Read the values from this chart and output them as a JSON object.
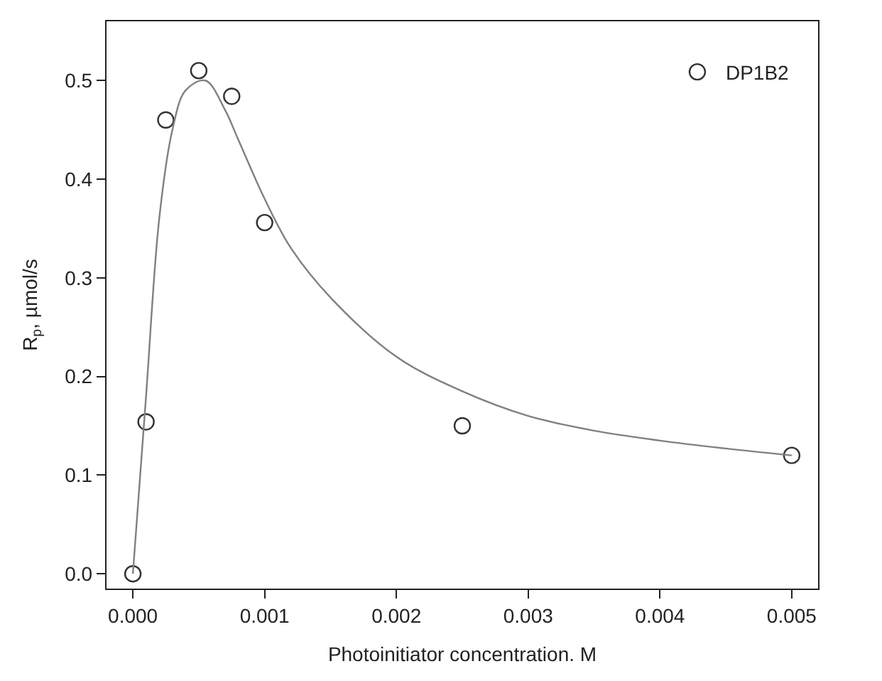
{
  "chart_data": {
    "type": "scatter",
    "xlabel": "Photoinitiator concentration. M",
    "ylabel": "R$_{p}$, µmol/s",
    "xlim": [
      -0.0002,
      0.0052
    ],
    "ylim": [
      -0.015,
      0.56
    ],
    "xticks": [
      {
        "value": 0,
        "label": "0.000"
      },
      {
        "value": 0.001,
        "label": "0.001"
      },
      {
        "value": 0.002,
        "label": "0.002"
      },
      {
        "value": 0.003,
        "label": "0.003"
      },
      {
        "value": 0.004,
        "label": "0.004"
      },
      {
        "value": 0.005,
        "label": "0.005"
      }
    ],
    "yticks": [
      {
        "value": 0,
        "label": "0.0"
      },
      {
        "value": 0.1,
        "label": "0.1"
      },
      {
        "value": 0.2,
        "label": "0.2"
      },
      {
        "value": 0.3,
        "label": "0.3"
      },
      {
        "value": 0.4,
        "label": "0.4"
      },
      {
        "value": 0.5,
        "label": "0.5"
      }
    ],
    "legend": "top right",
    "series": [
      {
        "name": "DP1B2",
        "marker": "circle",
        "color": "#333333",
        "x": [
          0,
          0.0001,
          0.00025,
          0.0005,
          0.00075,
          0.001,
          0.0025,
          0.005
        ],
        "values": [
          0,
          0.154,
          0.46,
          0.51,
          0.484,
          0.356,
          0.15,
          0.12
        ]
      },
      {
        "type": "line",
        "marker": "none",
        "color": "#808080",
        "line_style": "solid",
        "x": [
          0,
          0.0001,
          0.0002,
          0.0003,
          0.0004,
          0.00055,
          0.0007,
          0.0008,
          0.001,
          0.0012,
          0.0015,
          0.002,
          0.0025,
          0.003,
          0.0035,
          0.004,
          0.0045,
          0.005
        ],
        "values": [
          0,
          0.18,
          0.36,
          0.45,
          0.49,
          0.5,
          0.47,
          0.44,
          0.38,
          0.33,
          0.28,
          0.22,
          0.185,
          0.16,
          0.145,
          0.135,
          0.127,
          0.12
        ]
      }
    ]
  }
}
